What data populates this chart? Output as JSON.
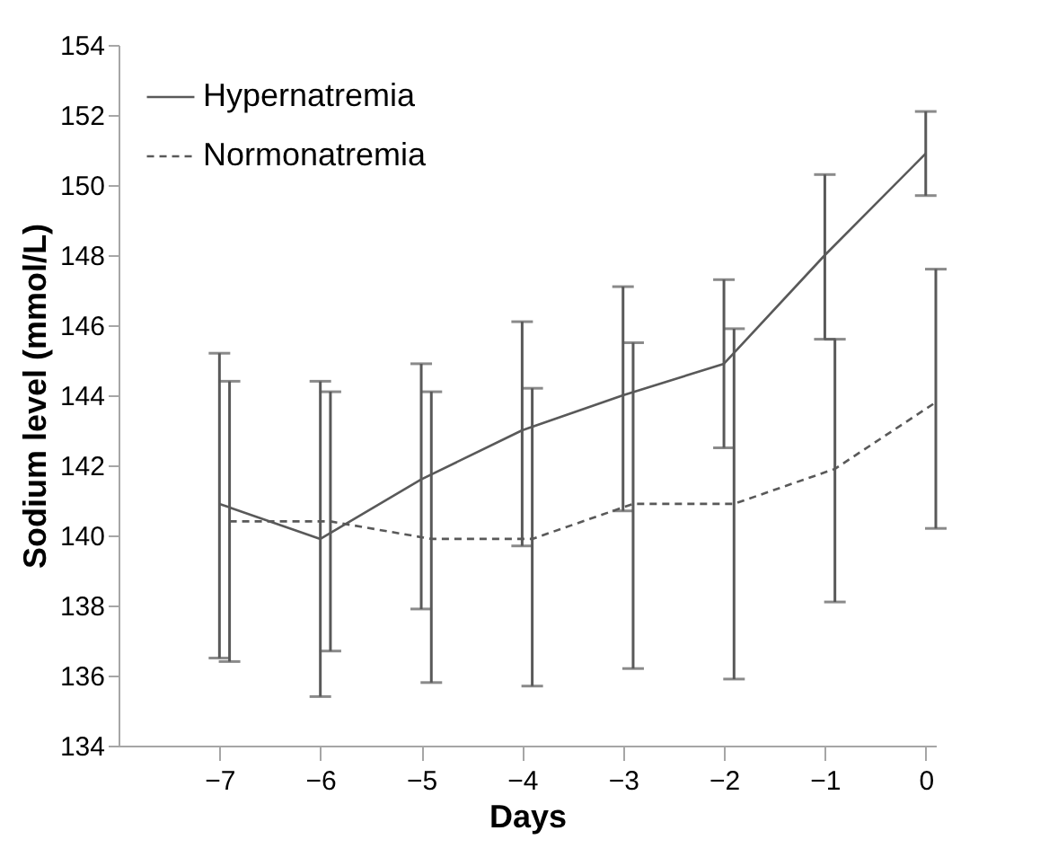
{
  "chart_data": {
    "type": "line",
    "xlabel": "Days",
    "ylabel": "Sodium level (mmol/L)",
    "x": [
      -7,
      -6,
      -5,
      -4,
      -3,
      -2,
      -1,
      0
    ],
    "series": [
      {
        "name": "Hypernatremia",
        "color": "#595959",
        "line_style": "solid",
        "values": [
          140.9,
          139.9,
          141.6,
          143.0,
          144.0,
          144.9,
          148.0,
          150.9
        ],
        "errors": [
          [
            136.5,
            145.2
          ],
          [
            135.4,
            144.4
          ],
          [
            137.9,
            144.9
          ],
          [
            139.7,
            146.1
          ],
          [
            140.7,
            147.1
          ],
          [
            142.5,
            147.3
          ],
          [
            145.6,
            150.3
          ],
          [
            149.7,
            152.1
          ]
        ]
      },
      {
        "name": "Normonatremia",
        "color": "#595959",
        "line_style": "dashed",
        "x": [
          -6.9,
          -5.9,
          -4.9,
          -3.9,
          -2.9,
          -1.9,
          -0.9,
          0.1
        ],
        "values": [
          140.4,
          140.4,
          139.9,
          139.9,
          140.9,
          140.9,
          141.9,
          143.8
        ],
        "errors": [
          [
            136.4,
            144.4
          ],
          [
            136.7,
            144.1
          ],
          [
            135.8,
            144.1
          ],
          [
            135.7,
            144.2
          ],
          [
            136.2,
            145.5
          ],
          [
            135.9,
            145.9
          ],
          [
            138.1,
            145.6
          ],
          [
            140.2,
            147.6
          ]
        ]
      }
    ],
    "xlim": [
      -8,
      0.1
    ],
    "xticks": [
      -7,
      -6,
      -5,
      -4,
      -3,
      -2,
      -1,
      0
    ],
    "ylim": [
      134,
      154
    ],
    "yticks": [
      134,
      136,
      138,
      140,
      142,
      144,
      146,
      148,
      150,
      152,
      154
    ],
    "grid": false,
    "legend": "top left",
    "marker": "none"
  }
}
